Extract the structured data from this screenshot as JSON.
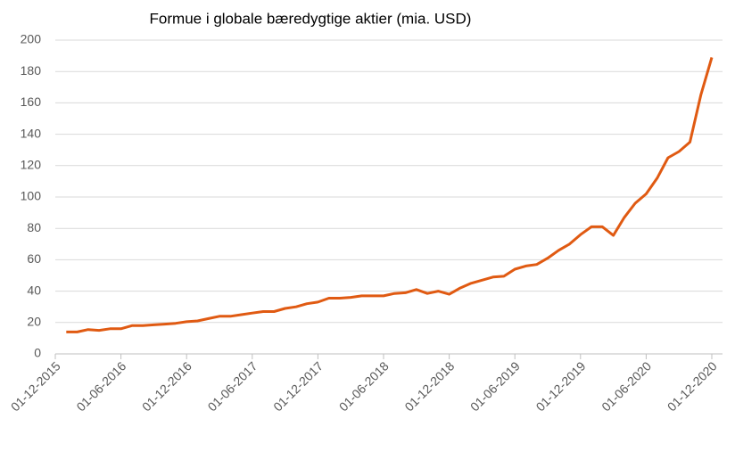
{
  "chart_data": {
    "type": "line",
    "title": "Formue i globale bæredygtige aktier (mia. USD)",
    "categories": [
      "01-12-2015",
      null,
      null,
      null,
      null,
      null,
      "01-06-2016",
      null,
      null,
      null,
      null,
      null,
      "01-12-2016",
      null,
      null,
      null,
      null,
      null,
      "01-06-2017",
      null,
      null,
      null,
      null,
      null,
      "01-12-2017",
      null,
      null,
      null,
      null,
      null,
      "01-06-2018",
      null,
      null,
      null,
      null,
      null,
      "01-12-2018",
      null,
      null,
      null,
      null,
      null,
      "01-06-2019",
      null,
      null,
      null,
      null,
      null,
      "01-12-2019",
      null,
      null,
      null,
      null,
      null,
      "01-06-2020",
      null,
      null,
      null,
      null,
      null,
      "01-12-2020"
    ],
    "series": [
      {
        "name": "Formue",
        "color": "#e05a12",
        "values": [
          null,
          14,
          14,
          15.5,
          15,
          16,
          16,
          18,
          18,
          18.5,
          19,
          19.5,
          20.5,
          21,
          22.5,
          24,
          24,
          25,
          26,
          27,
          27,
          29,
          30,
          32,
          33,
          35.5,
          35.5,
          36,
          37,
          37,
          37,
          38.5,
          39,
          41,
          38.5,
          40,
          38,
          42,
          45,
          47,
          49,
          49.5,
          54,
          56,
          57,
          61,
          66,
          70,
          76,
          81,
          81,
          75.5,
          87,
          96,
          102,
          112,
          125,
          129,
          135,
          165,
          189
        ]
      }
    ],
    "ylim": [
      0,
      200
    ],
    "yticks": [
      0,
      20,
      40,
      60,
      80,
      100,
      120,
      140,
      160,
      180,
      200
    ],
    "grid": true
  }
}
